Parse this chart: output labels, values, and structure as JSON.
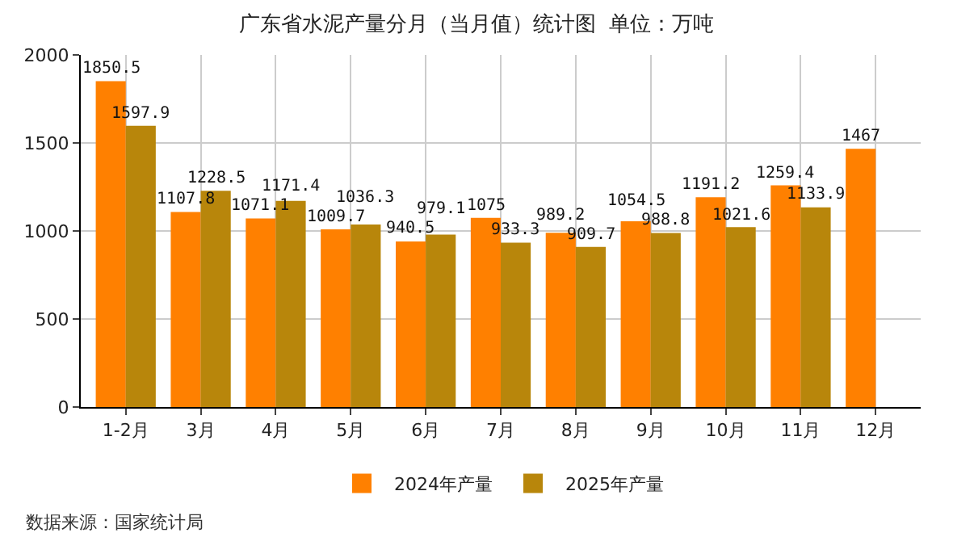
{
  "chart_data": {
    "type": "bar",
    "title": "广东省水泥产量分月（当月值）统计图  单位：万吨",
    "categories": [
      "1-2月",
      "3月",
      "4月",
      "5月",
      "6月",
      "7月",
      "8月",
      "9月",
      "10月",
      "11月",
      "12月"
    ],
    "series": [
      {
        "name": "2024年产量",
        "color": "#ff8000",
        "values": [
          1850.5,
          1107.8,
          1071.1,
          1009.7,
          940.5,
          1075,
          989.2,
          1054.5,
          1191.2,
          1259.4,
          1467
        ]
      },
      {
        "name": "2025年产量",
        "color": "#b8860b",
        "values": [
          1597.9,
          1228.5,
          1171.4,
          1036.3,
          979.1,
          933.3,
          909.7,
          988.8,
          1021.6,
          1133.9,
          null
        ]
      }
    ],
    "ylim": [
      0,
      2000
    ],
    "yticks": [
      0,
      500,
      1000,
      1500,
      2000
    ],
    "grid": true,
    "legend": "bottom",
    "data_labels": true,
    "annotations": [
      "数据来源：国家统计局"
    ]
  }
}
